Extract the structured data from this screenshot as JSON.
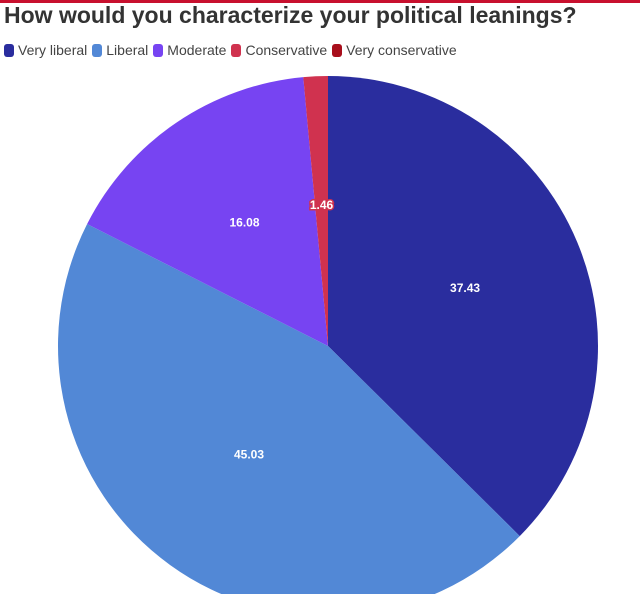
{
  "chart_data": {
    "type": "pie",
    "title": "How would you characterize your political leanings?",
    "legend_position": "top-left",
    "categories": [
      "Very liberal",
      "Liberal",
      "Moderate",
      "Conservative",
      "Very conservative"
    ],
    "values": [
      37.43,
      45.03,
      16.08,
      1.46,
      0
    ],
    "value_labels": [
      "37.43",
      "45.03",
      "16.08",
      "1.46",
      ""
    ],
    "colors": [
      "#2a2d9e",
      "#5288d6",
      "#7744f2",
      "#d0324f",
      "#a80f1c"
    ]
  }
}
